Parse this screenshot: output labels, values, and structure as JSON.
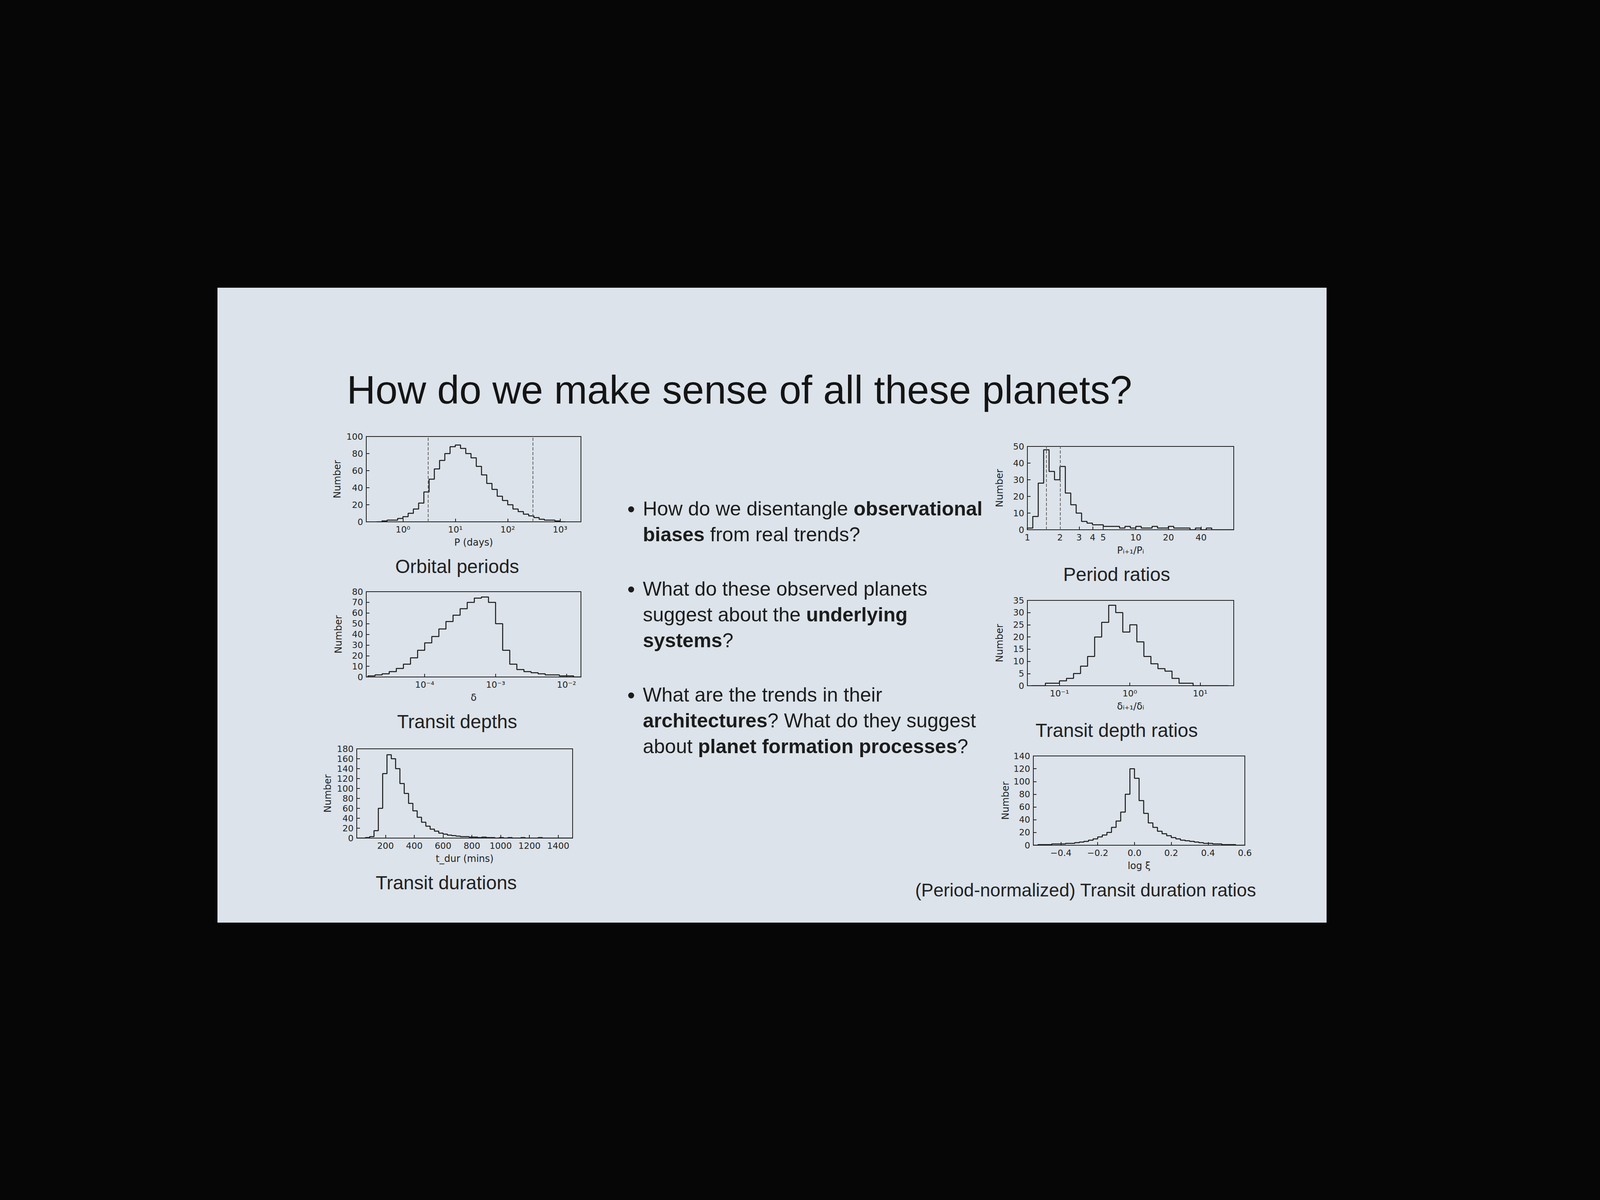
{
  "slide": {
    "title": "How do we make sense of all these planets?",
    "bullets": [
      [
        {
          "text": "How do we disentangle ",
          "bold": false
        },
        {
          "text": "observational biases",
          "bold": true
        },
        {
          "text": " from real trends?",
          "bold": false
        }
      ],
      [
        {
          "text": "What do these observed planets suggest about the ",
          "bold": false
        },
        {
          "text": "underlying systems",
          "bold": true
        },
        {
          "text": "?",
          "bold": false
        }
      ],
      [
        {
          "text": "What are the trends in their ",
          "bold": false
        },
        {
          "text": "architectures",
          "bold": true
        },
        {
          "text": "? What do they suggest about ",
          "bold": false
        },
        {
          "text": "planet formation processes",
          "bold": true
        },
        {
          "text": "?",
          "bold": false
        }
      ]
    ]
  },
  "chart_data": [
    {
      "type": "histogram",
      "title": "Orbital periods",
      "xlabel": "P (days)",
      "ylabel": "Number",
      "log": "x",
      "grid": false,
      "color": "#1a1a1a",
      "bins": [
        0.316,
        0.398,
        0.501,
        0.631,
        0.794,
        1,
        1.259,
        1.585,
        1.995,
        2.512,
        3.162,
        3.981,
        5.012,
        6.31,
        7.943,
        10,
        12.59,
        15.85,
        19.95,
        25.12,
        31.62,
        39.81,
        50.12,
        63.1,
        79.43,
        100,
        125.9,
        158.5,
        199.5,
        251.2,
        316.2,
        398.1,
        501.2,
        631,
        794.3,
        1000,
        1259
      ],
      "values": [
        0,
        1,
        2,
        2,
        4,
        6,
        10,
        15,
        22,
        35,
        50,
        62,
        72,
        80,
        88,
        90,
        86,
        80,
        75,
        65,
        55,
        45,
        38,
        30,
        25,
        20,
        15,
        12,
        9,
        7,
        5,
        3,
        2,
        2,
        1,
        0
      ],
      "vlines": [
        3,
        300
      ],
      "xlim": [
        0.2,
        2500
      ],
      "xticks": [
        {
          "value": 1,
          "label": "10⁰"
        },
        {
          "value": 10,
          "label": "10¹"
        },
        {
          "value": 100,
          "label": "10²"
        },
        {
          "value": 1000,
          "label": "10³"
        }
      ],
      "ylim": [
        0,
        100
      ],
      "yticks": [
        0,
        20,
        40,
        60,
        80,
        100
      ]
    },
    {
      "type": "histogram",
      "title": "Transit depths",
      "xlabel": "δ",
      "ylabel": "Number",
      "log": "x",
      "grid": false,
      "color": "#1a1a1a",
      "bins": [
        1.585e-05,
        1.995e-05,
        2.512e-05,
        3.162e-05,
        3.981e-05,
        5.012e-05,
        6.31e-05,
        7.943e-05,
        0.0001,
        0.0001259,
        0.0001585,
        0.0001995,
        0.0002512,
        0.0003162,
        0.0003981,
        0.0005012,
        0.000631,
        0.0007943,
        0.001,
        0.001259,
        0.001585,
        0.001995,
        0.002512,
        0.003162,
        0.003981,
        0.005012,
        0.00631,
        0.007943,
        0.01,
        0.01259,
        0.01585
      ],
      "values": [
        1,
        2,
        3,
        5,
        8,
        12,
        18,
        25,
        32,
        38,
        45,
        52,
        58,
        64,
        70,
        74,
        75,
        70,
        50,
        25,
        12,
        7,
        5,
        4,
        3,
        2,
        2,
        1,
        1,
        0
      ],
      "xlim": [
        1.5e-05,
        0.016
      ],
      "xticks": [
        {
          "value": 0.0001,
          "label": "10⁻⁴"
        },
        {
          "value": 0.001,
          "label": "10⁻³"
        },
        {
          "value": 0.01,
          "label": "10⁻²"
        }
      ],
      "ylim": [
        0,
        80
      ],
      "yticks": [
        0,
        10,
        20,
        30,
        40,
        50,
        60,
        70,
        80
      ]
    },
    {
      "type": "histogram",
      "title": "Transit durations",
      "xlabel": "t_dur (mins)",
      "ylabel": "Number",
      "grid": false,
      "color": "#1a1a1a",
      "bins": [
        0,
        30,
        60,
        90,
        120,
        150,
        180,
        210,
        240,
        270,
        300,
        330,
        360,
        390,
        420,
        450,
        480,
        510,
        540,
        570,
        600,
        630,
        660,
        690,
        720,
        750,
        780,
        810,
        840,
        870,
        900,
        930,
        960,
        990,
        1020,
        1050,
        1080,
        1110,
        1140,
        1170,
        1200,
        1230,
        1260,
        1290,
        1320,
        1350,
        1380,
        1410,
        1440,
        1470,
        1500
      ],
      "values": [
        0,
        0,
        1,
        3,
        15,
        60,
        130,
        168,
        160,
        140,
        110,
        90,
        70,
        55,
        42,
        32,
        24,
        18,
        14,
        10,
        8,
        6,
        5,
        4,
        3,
        3,
        2,
        2,
        1,
        2,
        1,
        1,
        0,
        1,
        0,
        1,
        0,
        0,
        1,
        0,
        0,
        0,
        1,
        0,
        0,
        0,
        0,
        0,
        0,
        0
      ],
      "xlim": [
        0,
        1500
      ],
      "xticks": [
        200,
        400,
        600,
        800,
        1000,
        1200,
        1400
      ],
      "ylim": [
        0,
        180
      ],
      "yticks": [
        0,
        20,
        40,
        60,
        80,
        100,
        120,
        140,
        160,
        180
      ]
    },
    {
      "type": "histogram",
      "title": "Period ratios",
      "xlabel": "Pᵢ₊₁/Pᵢ",
      "ylabel": "Number",
      "log": "x",
      "grid": false,
      "color": "#1a1a1a",
      "bins": [
        1,
        1.122,
        1.259,
        1.413,
        1.585,
        1.778,
        1.995,
        2.239,
        2.512,
        2.818,
        3.162,
        3.548,
        3.981,
        4.467,
        5.012,
        5.623,
        6.31,
        7.079,
        7.943,
        8.913,
        10,
        11.22,
        12.59,
        14.13,
        15.85,
        17.78,
        19.95,
        22.39,
        25.12,
        28.18,
        31.62,
        35.48,
        39.81,
        44.67,
        50.12,
        56.23,
        63.1,
        70.79,
        79.43
      ],
      "values": [
        1,
        8,
        28,
        48,
        35,
        30,
        38,
        22,
        15,
        10,
        5,
        4,
        3,
        3,
        2,
        2,
        2,
        1,
        2,
        1,
        2,
        1,
        1,
        2,
        1,
        1,
        2,
        1,
        1,
        1,
        0,
        1,
        0,
        1,
        0,
        0,
        0,
        0
      ],
      "vlines": [
        1.5,
        2
      ],
      "xlim": [
        1,
        80
      ],
      "xticks": [
        1,
        2,
        3,
        4,
        5,
        10,
        20,
        40
      ],
      "ylim": [
        0,
        50
      ],
      "yticks": [
        0,
        10,
        20,
        30,
        40,
        50
      ]
    },
    {
      "type": "histogram",
      "title": "Transit depth ratios",
      "xlabel": "δᵢ₊₁/δᵢ",
      "ylabel": "Number",
      "log": "x",
      "grid": false,
      "color": "#1a1a1a",
      "bins": [
        0.03981,
        0.05012,
        0.0631,
        0.07943,
        0.1,
        0.1259,
        0.1585,
        0.1995,
        0.2512,
        0.3162,
        0.3981,
        0.5012,
        0.631,
        0.7943,
        1,
        1.259,
        1.585,
        1.995,
        2.512,
        3.162,
        3.981,
        5.012,
        6.31,
        7.943,
        10,
        12.59,
        15.85,
        19.95,
        25.12
      ],
      "values": [
        0,
        0,
        1,
        1,
        2,
        3,
        5,
        8,
        12,
        20,
        26,
        33,
        30,
        22,
        25,
        18,
        12,
        9,
        7,
        6,
        3,
        1,
        1,
        0,
        0,
        0,
        0,
        0
      ],
      "xlim": [
        0.035,
        30
      ],
      "xticks": [
        {
          "value": 0.1,
          "label": "10⁻¹"
        },
        {
          "value": 1,
          "label": "10⁰"
        },
        {
          "value": 10,
          "label": "10¹"
        }
      ],
      "ylim": [
        0,
        35
      ],
      "yticks": [
        0,
        5,
        10,
        15,
        20,
        25,
        30,
        35
      ]
    },
    {
      "type": "histogram",
      "title": "(Period-normalized) Transit duration ratios",
      "xlabel": "log ξ",
      "ylabel": "Number",
      "grid": false,
      "color": "#1a1a1a",
      "bins": [
        -0.55,
        -0.525,
        -0.5,
        -0.475,
        -0.45,
        -0.425,
        -0.4,
        -0.375,
        -0.35,
        -0.325,
        -0.3,
        -0.275,
        -0.25,
        -0.225,
        -0.2,
        -0.175,
        -0.15,
        -0.125,
        -0.1,
        -0.075,
        -0.05,
        -0.025,
        0,
        0.025,
        0.05,
        0.075,
        0.1,
        0.125,
        0.15,
        0.175,
        0.2,
        0.225,
        0.25,
        0.275,
        0.3,
        0.325,
        0.35,
        0.375,
        0.4,
        0.425,
        0.45,
        0.475,
        0.5,
        0.525,
        0.55,
        0.575,
        0.6
      ],
      "values": [
        0,
        1,
        1,
        1,
        2,
        2,
        2,
        3,
        3,
        4,
        5,
        6,
        8,
        10,
        13,
        16,
        20,
        28,
        38,
        52,
        80,
        120,
        105,
        70,
        50,
        35,
        28,
        22,
        18,
        15,
        12,
        10,
        8,
        7,
        6,
        5,
        4,
        3,
        3,
        2,
        2,
        1,
        1,
        1,
        0,
        0
      ],
      "xlim": [
        -0.55,
        0.6
      ],
      "xticks": [
        {
          "value": -0.4,
          "label": "−0.4"
        },
        {
          "value": -0.2,
          "label": "−0.2"
        },
        {
          "value": 0,
          "label": "0.0"
        },
        {
          "value": 0.2,
          "label": "0.2"
        },
        {
          "value": 0.4,
          "label": "0.4"
        },
        {
          "value": 0.6,
          "label": "0.6"
        }
      ],
      "ylim": [
        0,
        140
      ],
      "yticks": [
        0,
        20,
        40,
        60,
        80,
        100,
        120,
        140
      ]
    }
  ]
}
